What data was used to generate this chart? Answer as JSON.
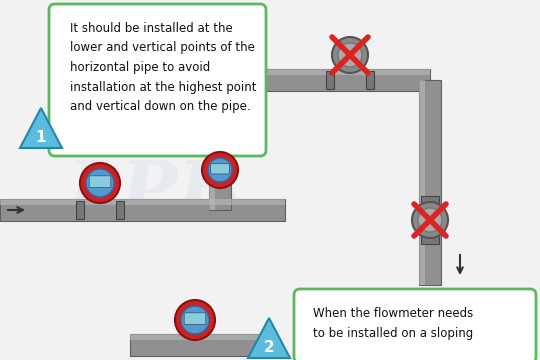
{
  "bg_color": "#f2f2f2",
  "text_box1": "It should be installed at the\nlower and vertical points of the\nhorizontal pipe to avoid\ninstallation at the highest point\nand vertical down on the pipe.",
  "text_box2": "When the flowmeter needs\nto be installed on a sloping",
  "arrow_color": "#444444",
  "pipe_color": "#909090",
  "pipe_dark": "#606060",
  "pipe_light": "#bbbbbb",
  "red_x_color": "#dd2222",
  "box_border": "#5cb85c",
  "triangle_fill": "#5bbcdd",
  "triangle_border": "#2288aa",
  "number_color": "#ffffff",
  "watermark_color": "#c8d8e8",
  "font_size_text": 8.5,
  "font_size_num": 11
}
